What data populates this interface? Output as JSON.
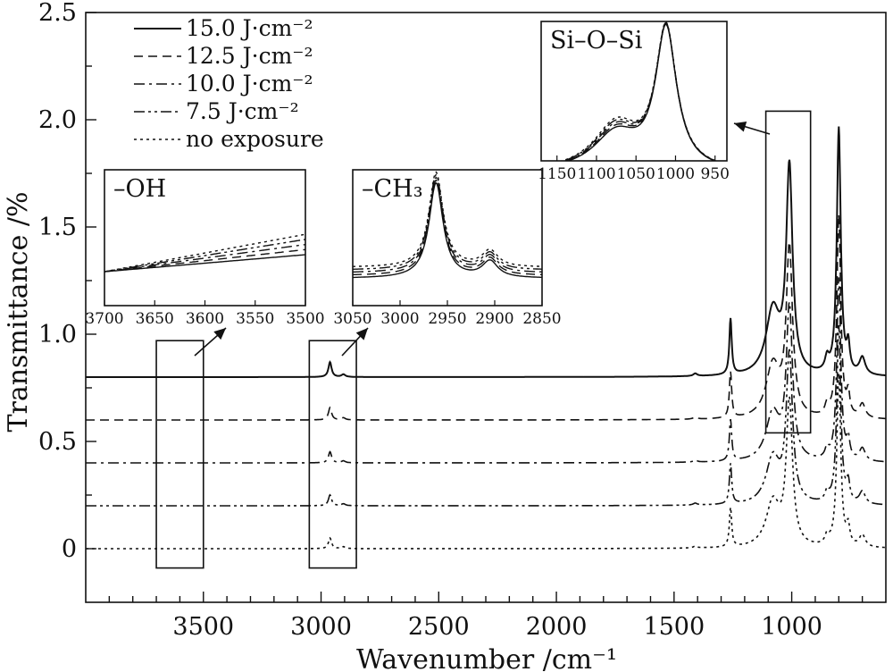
{
  "chart_data": {
    "type": "line",
    "title": "",
    "xlabel": "Wavenumber /cm⁻¹",
    "ylabel": "Transmittance /%",
    "xlim": [
      4000,
      600
    ],
    "ylim": [
      -0.25,
      2.5
    ],
    "x_ticks": [
      3500,
      3000,
      2500,
      2000,
      1500,
      1000
    ],
    "x_tick_labels": [
      "3500",
      "3000",
      "2500",
      "2000",
      "1500",
      "1000"
    ],
    "y_ticks": [
      0,
      0.5,
      1.0,
      1.5,
      2.0,
      2.5
    ],
    "y_tick_labels": [
      "0",
      "0.5",
      "1.0",
      "1.5",
      "2.0",
      "2.5"
    ],
    "grid": false,
    "legend_position": "top-left",
    "series": [
      {
        "name": "15.0 J·cm⁻²",
        "dash": "solid",
        "baseline": 0.8,
        "peak_scale": 1.0
      },
      {
        "name": "12.5 J·cm⁻²",
        "dash": "dashed",
        "baseline": 0.6,
        "peak_scale": 0.82
      },
      {
        "name": "10.0 J·cm⁻²",
        "dash": "dashdot",
        "baseline": 0.4,
        "peak_scale": 0.74
      },
      {
        "name": "7.5 J·cm⁻²",
        "dash": "dashdotdot",
        "baseline": 0.2,
        "peak_scale": 0.72
      },
      {
        "name": "no exposure",
        "dash": "dotted",
        "baseline": 0.0,
        "peak_scale": 0.7
      }
    ],
    "peaks": [
      {
        "center": 3657,
        "width": 3,
        "height": 0.0
      },
      {
        "center": 2962,
        "width": 8,
        "height": 0.07
      },
      {
        "center": 2905,
        "width": 10,
        "height": 0.012
      },
      {
        "center": 1410,
        "width": 10,
        "height": 0.012
      },
      {
        "center": 1260,
        "width": 6,
        "height": 0.26
      },
      {
        "center": 1080,
        "width": 35,
        "height": 0.3
      },
      {
        "center": 1010,
        "width": 16,
        "height": 0.95
      },
      {
        "center": 850,
        "width": 10,
        "height": 0.06
      },
      {
        "center": 800,
        "width": 10,
        "height": 1.15
      },
      {
        "center": 760,
        "width": 8,
        "height": 0.12
      },
      {
        "center": 700,
        "width": 15,
        "height": 0.08
      }
    ],
    "highlight_boxes": [
      {
        "name": "box-oh",
        "x_range": [
          3700,
          3500
        ],
        "y_range": [
          -0.09,
          0.97
        ]
      },
      {
        "name": "box-ch3",
        "x_range": [
          3050,
          2850
        ],
        "y_range": [
          -0.09,
          0.97
        ]
      },
      {
        "name": "box-sio",
        "x_range": [
          1110,
          920
        ],
        "y_range": [
          0.54,
          2.04
        ]
      }
    ],
    "insets": [
      {
        "label": "–OH",
        "x_range": [
          3700,
          3500
        ],
        "x_ticks": [
          3700,
          3650,
          3600,
          3550,
          3500
        ],
        "x_tick_labels": [
          "3700",
          "3650",
          "3600",
          "3550",
          "3500"
        ]
      },
      {
        "label": "–CH₃",
        "x_range": [
          3050,
          2850
        ],
        "x_ticks": [
          3050,
          3000,
          2950,
          2900,
          2850
        ],
        "x_tick_labels": [
          "3050",
          "3000",
          "2950",
          "2900",
          "2850"
        ]
      },
      {
        "label": "Si–O–Si",
        "x_range": [
          1170,
          935
        ],
        "x_ticks": [
          1150,
          1100,
          1050,
          1000,
          950
        ],
        "x_tick_labels": [
          "1150",
          "1100",
          "1050",
          "1000",
          "950"
        ]
      }
    ]
  }
}
